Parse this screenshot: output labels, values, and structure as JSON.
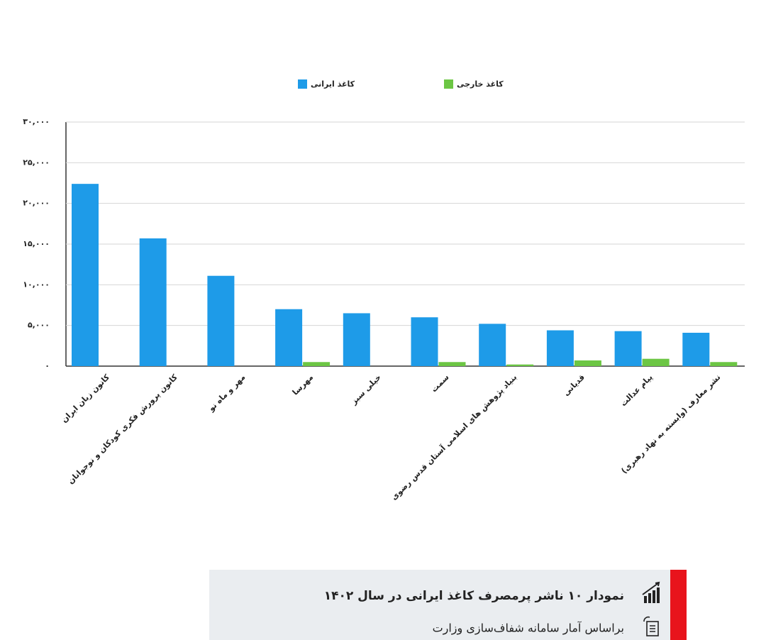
{
  "chart_data": {
    "type": "bar",
    "title": "نمودار ۱۰ ناشر پرمصرف کاغذ ایرانی در سال ۱۴۰۲",
    "subtitle": "براساس آمار سامانه شفاف‌سازی وزارت",
    "categories": [
      "کانون زبان ایران",
      "کانون پرورش فکری کودکان و نوجوانان",
      "مهر و ماه نو",
      "مهرسا",
      "خیلی سبز",
      "سمت",
      "بنیاد پژوهش های اسلامی آستان قدس رضوی",
      "قدیانی",
      "پیام عدالت",
      "نشر معارف (وابسته به نهاد رهبری)"
    ],
    "series": [
      {
        "name": "کاغذ ایرانی",
        "color": "#1e9be8",
        "values": [
          22400,
          15700,
          11100,
          7000,
          6500,
          6000,
          5200,
          4400,
          4300,
          4100
        ]
      },
      {
        "name": "کاغذ خارجی",
        "color": "#6cc644",
        "values": [
          0,
          0,
          0,
          500,
          0,
          500,
          200,
          700,
          900,
          500
        ]
      }
    ],
    "ylim": [
      0,
      30000
    ],
    "yticks": [
      {
        "value": 0,
        "label": "۰"
      },
      {
        "value": 5000,
        "label": "۵,۰۰۰"
      },
      {
        "value": 10000,
        "label": "۱۰,۰۰۰"
      },
      {
        "value": 15000,
        "label": "۱۵,۰۰۰"
      },
      {
        "value": 20000,
        "label": "۲۰,۰۰۰"
      },
      {
        "value": 25000,
        "label": "۲۵,۰۰۰"
      },
      {
        "value": 30000,
        "label": "۳۰,۰۰۰"
      }
    ],
    "grid": true
  }
}
